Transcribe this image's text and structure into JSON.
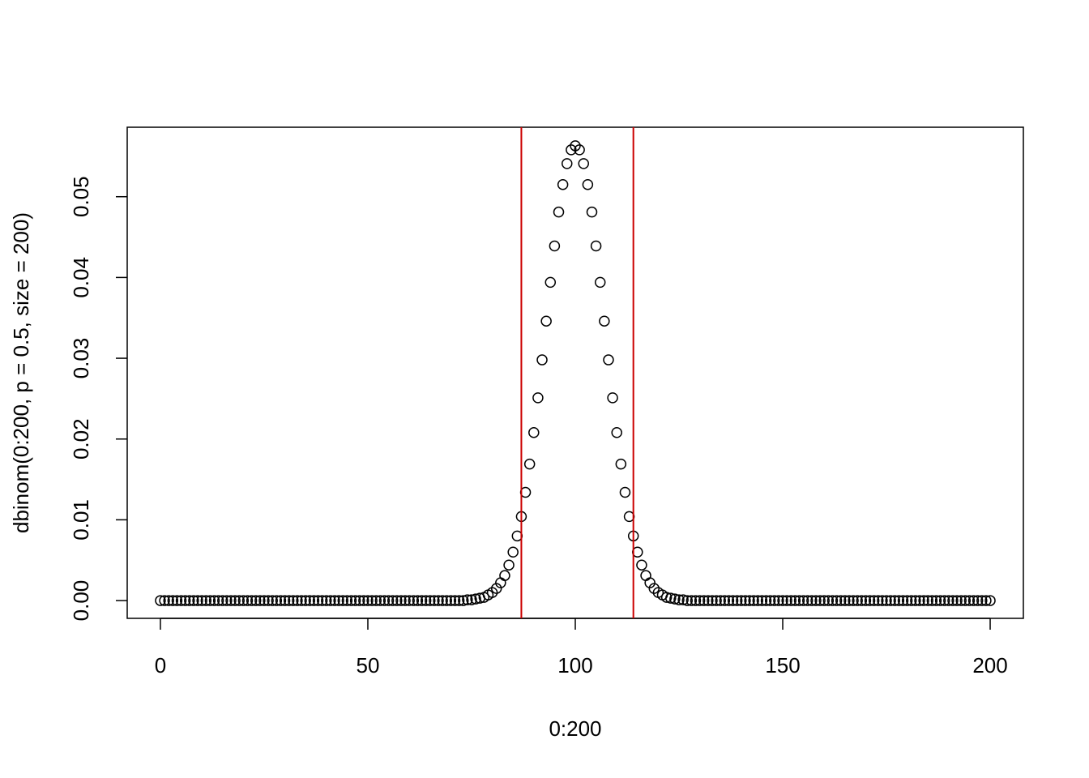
{
  "chart_data": {
    "type": "scatter",
    "x_label": "0:200",
    "y_label": "dbinom(0:200, p = 0.5, size = 200)",
    "x": [
      0,
      1,
      2,
      3,
      4,
      5,
      6,
      7,
      8,
      9,
      10,
      11,
      12,
      13,
      14,
      15,
      16,
      17,
      18,
      19,
      20,
      21,
      22,
      23,
      24,
      25,
      26,
      27,
      28,
      29,
      30,
      31,
      32,
      33,
      34,
      35,
      36,
      37,
      38,
      39,
      40,
      41,
      42,
      43,
      44,
      45,
      46,
      47,
      48,
      49,
      50,
      51,
      52,
      53,
      54,
      55,
      56,
      57,
      58,
      59,
      60,
      61,
      62,
      63,
      64,
      65,
      66,
      67,
      68,
      69,
      70,
      71,
      72,
      73,
      74,
      75,
      76,
      77,
      78,
      79,
      80,
      81,
      82,
      83,
      84,
      85,
      86,
      87,
      88,
      89,
      90,
      91,
      92,
      93,
      94,
      95,
      96,
      97,
      98,
      99,
      100,
      101,
      102,
      103,
      104,
      105,
      106,
      107,
      108,
      109,
      110,
      111,
      112,
      113,
      114,
      115,
      116,
      117,
      118,
      119,
      120,
      121,
      122,
      123,
      124,
      125,
      126,
      127,
      128,
      129,
      130,
      131,
      132,
      133,
      134,
      135,
      136,
      137,
      138,
      139,
      140,
      141,
      142,
      143,
      144,
      145,
      146,
      147,
      148,
      149,
      150,
      151,
      152,
      153,
      154,
      155,
      156,
      157,
      158,
      159,
      160,
      161,
      162,
      163,
      164,
      165,
      166,
      167,
      168,
      169,
      170,
      171,
      172,
      173,
      174,
      175,
      176,
      177,
      178,
      179,
      180,
      181,
      182,
      183,
      184,
      185,
      186,
      187,
      188,
      189,
      190,
      191,
      192,
      193,
      194,
      195,
      196,
      197,
      198,
      199,
      200
    ],
    "values": [
      0,
      0,
      0,
      0,
      0,
      0,
      0,
      0,
      0,
      0,
      0,
      0,
      0,
      0,
      0,
      0,
      0,
      0,
      0,
      0,
      0,
      0,
      0,
      0,
      0,
      0,
      0,
      0,
      0,
      0,
      0,
      0,
      0,
      0,
      0,
      0,
      0,
      0,
      0,
      0,
      0,
      0,
      0,
      0,
      0,
      0,
      0,
      0,
      0,
      0,
      0,
      0,
      0,
      0,
      0,
      0,
      0,
      0,
      0,
      0,
      0,
      0,
      0,
      0,
      0,
      0,
      0,
      0,
      0,
      0,
      0,
      0,
      0,
      0,
      0.0001,
      0.0001,
      0.0002,
      0.0003,
      0.0004,
      0.0007,
      0.001,
      0.0015,
      0.0022,
      0.0031,
      0.0044,
      0.006,
      0.008,
      0.0104,
      0.0134,
      0.0169,
      0.0208,
      0.0251,
      0.0298,
      0.0346,
      0.0394,
      0.0439,
      0.0481,
      0.0515,
      0.0541,
      0.0558,
      0.0563,
      0.0558,
      0.0541,
      0.0515,
      0.0481,
      0.0439,
      0.0394,
      0.0346,
      0.0298,
      0.0251,
      0.0208,
      0.0169,
      0.0134,
      0.0104,
      0.008,
      0.006,
      0.0044,
      0.0031,
      0.0022,
      0.0015,
      0.001,
      0.0007,
      0.0004,
      0.0003,
      0.0002,
      0.0001,
      0.0001,
      0,
      0,
      0,
      0,
      0,
      0,
      0,
      0,
      0,
      0,
      0,
      0,
      0,
      0,
      0,
      0,
      0,
      0,
      0,
      0,
      0,
      0,
      0,
      0,
      0,
      0,
      0,
      0,
      0,
      0,
      0,
      0,
      0,
      0,
      0,
      0,
      0,
      0,
      0,
      0,
      0,
      0,
      0,
      0,
      0,
      0,
      0,
      0,
      0,
      0,
      0,
      0,
      0,
      0,
      0,
      0,
      0,
      0,
      0,
      0,
      0,
      0,
      0,
      0,
      0,
      0,
      0,
      0,
      0,
      0,
      0,
      0,
      0,
      0
    ],
    "color": "#000000",
    "vlines": [
      87,
      114
    ],
    "vline_color": "#cc0000",
    "xlim": [
      -8,
      208
    ],
    "ylim": [
      -0.0022,
      0.0586
    ],
    "xticks": [
      0,
      50,
      100,
      150,
      200
    ],
    "yticks": [
      {
        "value": 0,
        "label": "0.00"
      },
      {
        "value": 0.01,
        "label": "0.01"
      },
      {
        "value": 0.02,
        "label": "0.02"
      },
      {
        "value": 0.03,
        "label": "0.03"
      },
      {
        "value": 0.04,
        "label": "0.04"
      },
      {
        "value": 0.05,
        "label": "0.05"
      }
    ],
    "grid": false
  }
}
